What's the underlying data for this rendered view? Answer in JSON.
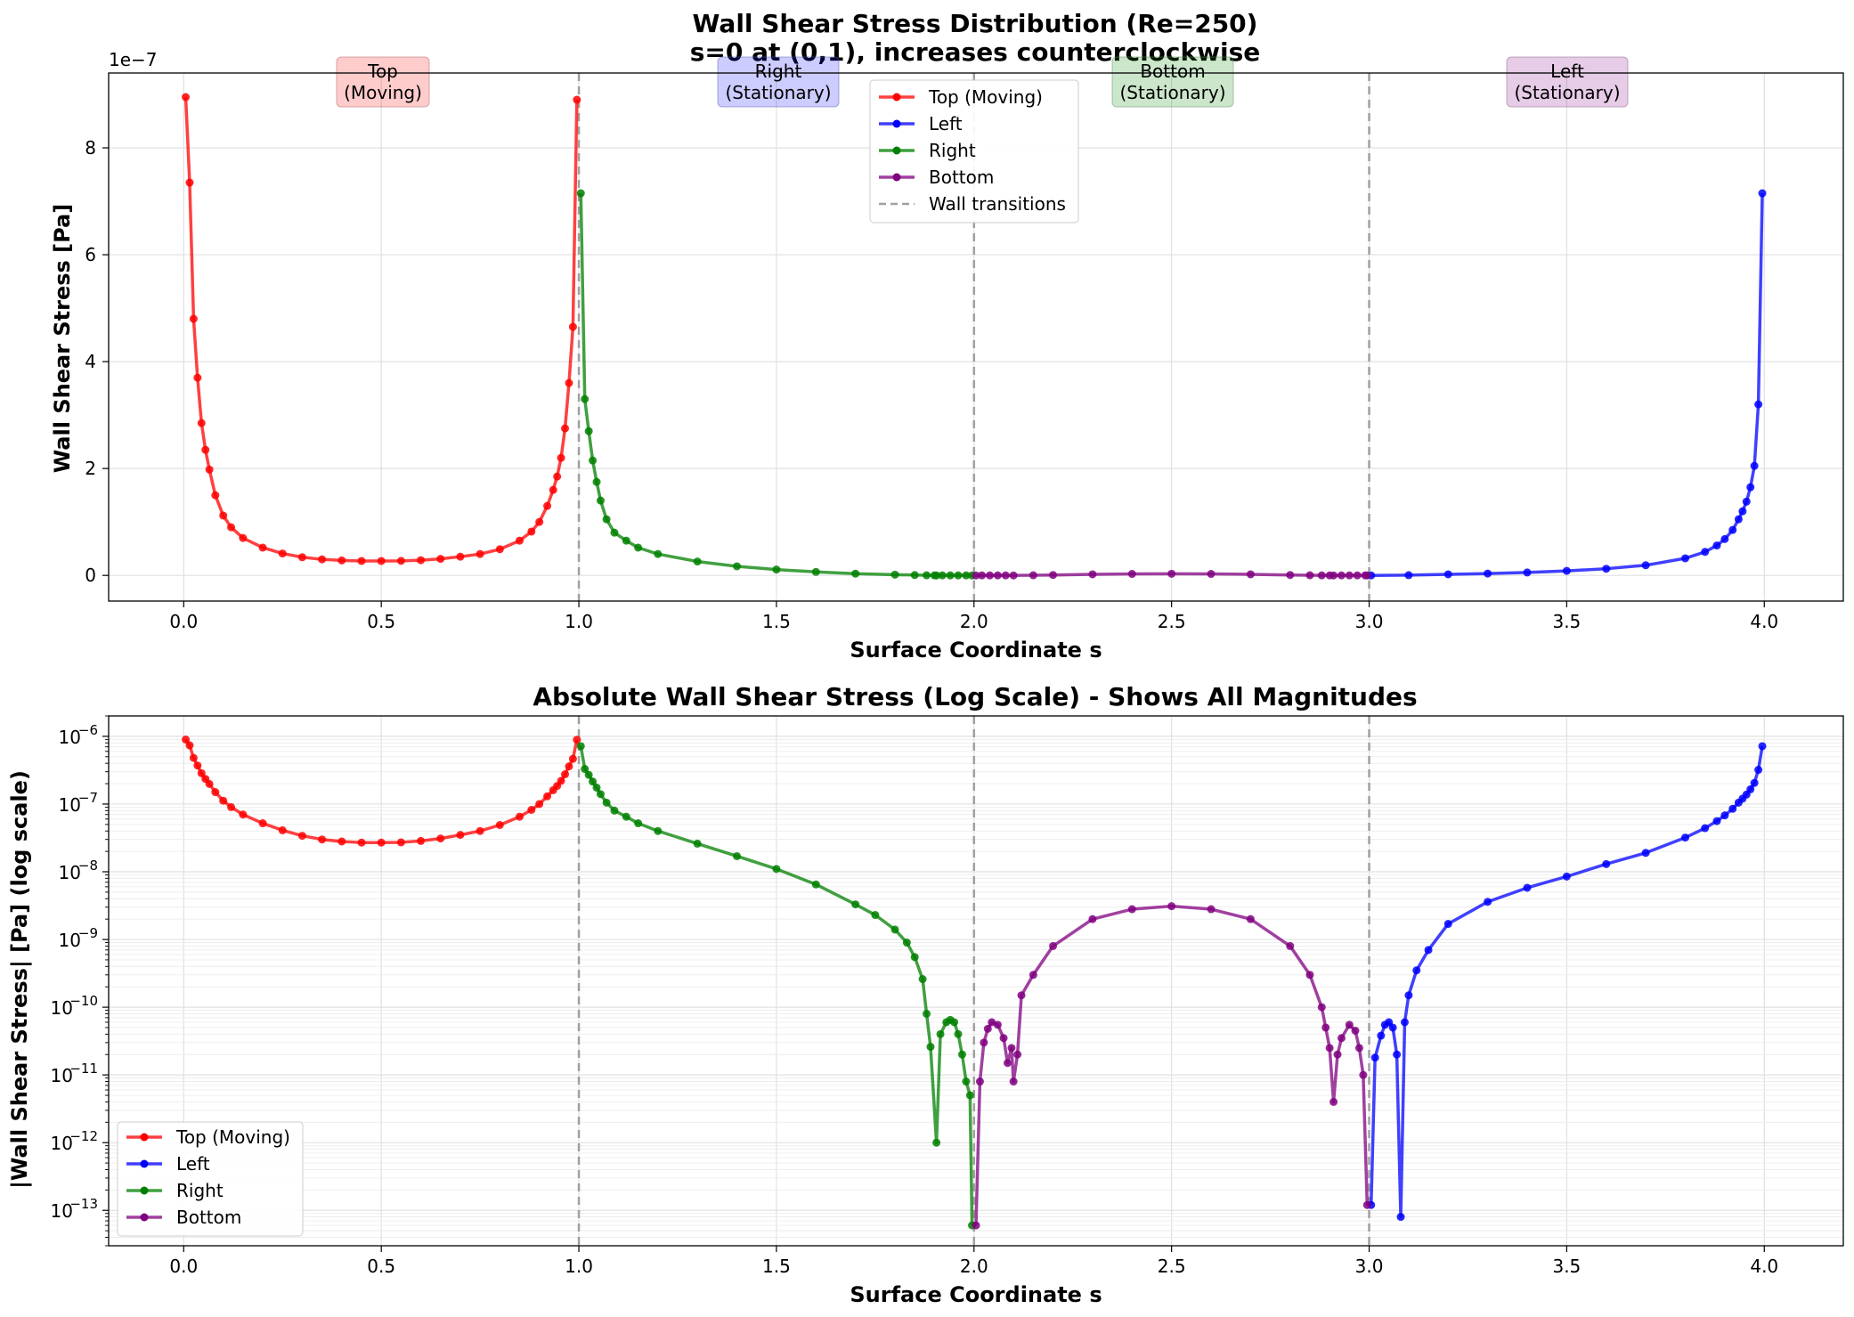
{
  "colors": {
    "top": "#ff0000",
    "left": "#0000ff",
    "right": "#008000",
    "bottom": "#800080",
    "transition": "#a0a0a0",
    "grid": "#e0e0e0"
  },
  "top_chart": {
    "title_line1": "Wall Shear Stress Distribution (Re=250)",
    "title_line2": "s=0 at (0,1), increases counterclockwise",
    "xlabel": "Surface Coordinate s",
    "ylabel": "Wall Shear Stress [Pa]",
    "offset_text": "1e−7",
    "x_ticks": [
      "0.0",
      "0.5",
      "1.0",
      "1.5",
      "2.0",
      "2.5",
      "3.0",
      "3.5",
      "4.0"
    ],
    "y_ticks": [
      "0",
      "2",
      "4",
      "6",
      "8"
    ],
    "wall_labels": [
      {
        "line1": "Top",
        "line2": "(Moving)"
      },
      {
        "line1": "Right",
        "line2": "(Stationary)"
      },
      {
        "line1": "Bottom",
        "line2": "(Stationary)"
      },
      {
        "line1": "Left",
        "line2": "(Stationary)"
      }
    ],
    "legend": [
      "Top (Moving)",
      "Left",
      "Right",
      "Bottom",
      "Wall transitions"
    ]
  },
  "bottom_chart": {
    "title": "Absolute Wall Shear Stress (Log Scale) - Shows All Magnitudes",
    "xlabel": "Surface Coordinate s",
    "ylabel": "|Wall Shear Stress| [Pa] (log scale)",
    "x_ticks": [
      "0.0",
      "0.5",
      "1.0",
      "1.5",
      "2.0",
      "2.5",
      "3.0",
      "3.5",
      "4.0"
    ],
    "y_ticks": [
      {
        "base": "10",
        "exp": "−6"
      },
      {
        "base": "10",
        "exp": "−7"
      },
      {
        "base": "10",
        "exp": "−8"
      },
      {
        "base": "10",
        "exp": "−9"
      },
      {
        "base": "10",
        "exp": "−10"
      },
      {
        "base": "10",
        "exp": "−11"
      },
      {
        "base": "10",
        "exp": "−12"
      },
      {
        "base": "10",
        "exp": "−13"
      }
    ],
    "legend": [
      "Top (Moving)",
      "Left",
      "Right",
      "Bottom"
    ]
  },
  "chart_data": [
    {
      "type": "line",
      "title": "Wall Shear Stress Distribution (Re=250)\ns=0 at (0,1), increases counterclockwise",
      "xlabel": "Surface Coordinate s",
      "ylabel": "Wall Shear Stress [Pa]",
      "xlim": [
        -0.19,
        4.2
      ],
      "ylim": [
        -4.8e-08,
        9.4e-07
      ],
      "y_scale": "linear",
      "grid": true,
      "legend_placement": "upper-center",
      "wall_transitions": [
        1.0,
        2.0,
        3.0
      ],
      "series": [
        {
          "name": "Top (Moving)",
          "color": "#ff0000",
          "x": [
            0.005,
            0.015,
            0.025,
            0.035,
            0.045,
            0.055,
            0.065,
            0.08,
            0.1,
            0.12,
            0.15,
            0.2,
            0.25,
            0.3,
            0.35,
            0.4,
            0.45,
            0.5,
            0.55,
            0.6,
            0.65,
            0.7,
            0.75,
            0.8,
            0.85,
            0.88,
            0.9,
            0.92,
            0.935,
            0.945,
            0.955,
            0.965,
            0.975,
            0.985,
            0.995
          ],
          "y": [
            8.95e-07,
            7.35e-07,
            4.8e-07,
            3.7e-07,
            2.85e-07,
            2.35e-07,
            1.98e-07,
            1.5e-07,
            1.12e-07,
            9e-08,
            7e-08,
            5.2e-08,
            4.1e-08,
            3.4e-08,
            3e-08,
            2.8e-08,
            2.7e-08,
            2.7e-08,
            2.72e-08,
            2.85e-08,
            3.1e-08,
            3.5e-08,
            4e-08,
            4.9e-08,
            6.5e-08,
            8.2e-08,
            1e-07,
            1.3e-07,
            1.6e-07,
            1.85e-07,
            2.2e-07,
            2.75e-07,
            3.6e-07,
            4.65e-07,
            8.9e-07
          ]
        },
        {
          "name": "Left",
          "color": "#0000ff",
          "x": [
            3.005,
            3.1,
            3.2,
            3.3,
            3.4,
            3.5,
            3.6,
            3.7,
            3.8,
            3.85,
            3.88,
            3.9,
            3.92,
            3.935,
            3.945,
            3.955,
            3.965,
            3.975,
            3.985,
            3.995
          ],
          "y": [
            1e-13,
            5e-10,
            2e-09,
            3.5e-09,
            5.5e-09,
            8.5e-09,
            1.25e-08,
            1.9e-08,
            3.2e-08,
            4.4e-08,
            5.6e-08,
            6.8e-08,
            8.5e-08,
            1.05e-07,
            1.2e-07,
            1.38e-07,
            1.65e-07,
            2.05e-07,
            3.2e-07,
            7.15e-07
          ]
        },
        {
          "name": "Right",
          "color": "#008000",
          "x": [
            1.005,
            1.015,
            1.025,
            1.035,
            1.045,
            1.055,
            1.07,
            1.09,
            1.12,
            1.15,
            1.2,
            1.3,
            1.4,
            1.5,
            1.6,
            1.7,
            1.8,
            1.85,
            1.88,
            1.9,
            1.905,
            1.92,
            1.94,
            1.96,
            1.98,
            1.995
          ],
          "y": [
            7.15e-07,
            3.3e-07,
            2.7e-07,
            2.15e-07,
            1.75e-07,
            1.4e-07,
            1.05e-07,
            8e-08,
            6.5e-08,
            5.2e-08,
            4e-08,
            2.6e-08,
            1.7e-08,
            1.1e-08,
            6.5e-09,
            3.3e-09,
            1.4e-09,
            7e-10,
            2.8e-10,
            2.6e-11,
            1e-12,
            4e-11,
            6e-11,
            5e-11,
            2e-11,
            1e-13
          ]
        },
        {
          "name": "Bottom",
          "color": "#800080",
          "x": [
            2.005,
            2.02,
            2.04,
            2.06,
            2.08,
            2.1,
            2.15,
            2.2,
            2.3,
            2.4,
            2.5,
            2.6,
            2.7,
            2.8,
            2.85,
            2.88,
            2.9,
            2.91,
            2.93,
            2.95,
            2.97,
            2.99,
            2.995
          ],
          "y": [
            6e-14,
            1.5e-11,
            4.8e-11,
            6e-11,
            4e-11,
            8e-12,
            3e-10,
            8e-10,
            2e-09,
            2.8e-09,
            3.1e-09,
            2.8e-09,
            2e-09,
            8e-10,
            3e-10,
            6e-11,
            2.5e-11,
            4e-12,
            3.5e-11,
            5.5e-11,
            4.5e-11,
            1.5e-11,
            1.2e-13
          ]
        }
      ],
      "annotations": [
        "Top\n(Moving)",
        "Right\n(Stationary)",
        "Bottom\n(Stationary)",
        "Left\n(Stationary)"
      ]
    },
    {
      "type": "line",
      "title": "Absolute Wall Shear Stress (Log Scale) - Shows All Magnitudes",
      "xlabel": "Surface Coordinate s",
      "ylabel": "|Wall Shear Stress| [Pa] (log scale)",
      "xlim": [
        -0.19,
        4.2
      ],
      "ylim": [
        3e-14,
        2e-06
      ],
      "y_scale": "log",
      "grid": true,
      "legend_placement": "lower-left",
      "wall_transitions": [
        1.0,
        2.0,
        3.0
      ],
      "series": [
        {
          "name": "Top (Moving)",
          "color": "#ff0000",
          "x": [
            0.005,
            0.015,
            0.025,
            0.035,
            0.045,
            0.055,
            0.065,
            0.08,
            0.1,
            0.12,
            0.15,
            0.2,
            0.25,
            0.3,
            0.35,
            0.4,
            0.45,
            0.5,
            0.55,
            0.6,
            0.65,
            0.7,
            0.75,
            0.8,
            0.85,
            0.88,
            0.9,
            0.92,
            0.935,
            0.945,
            0.955,
            0.965,
            0.975,
            0.985,
            0.995
          ],
          "y": [
            8.95e-07,
            7.35e-07,
            4.8e-07,
            3.7e-07,
            2.85e-07,
            2.35e-07,
            1.98e-07,
            1.5e-07,
            1.12e-07,
            9e-08,
            7e-08,
            5.2e-08,
            4.1e-08,
            3.4e-08,
            3e-08,
            2.8e-08,
            2.7e-08,
            2.7e-08,
            2.72e-08,
            2.85e-08,
            3.1e-08,
            3.5e-08,
            4e-08,
            4.9e-08,
            6.5e-08,
            8.2e-08,
            1e-07,
            1.3e-07,
            1.6e-07,
            1.85e-07,
            2.2e-07,
            2.75e-07,
            3.6e-07,
            4.65e-07,
            8.9e-07
          ]
        },
        {
          "name": "Left",
          "color": "#0000ff",
          "x": [
            3.005,
            3.015,
            3.03,
            3.04,
            3.05,
            3.06,
            3.07,
            3.08,
            3.09,
            3.1,
            3.12,
            3.15,
            3.2,
            3.3,
            3.4,
            3.5,
            3.6,
            3.7,
            3.8,
            3.85,
            3.88,
            3.9,
            3.92,
            3.935,
            3.945,
            3.955,
            3.965,
            3.975,
            3.985,
            3.995
          ],
          "y": [
            1.2e-13,
            1.8e-11,
            3.8e-11,
            5.5e-11,
            6e-11,
            5e-11,
            2e-11,
            8e-14,
            6e-11,
            1.5e-10,
            3.5e-10,
            7e-10,
            1.7e-09,
            3.6e-09,
            5.8e-09,
            8.5e-09,
            1.3e-08,
            1.9e-08,
            3.2e-08,
            4.4e-08,
            5.6e-08,
            6.8e-08,
            8.5e-08,
            1.05e-07,
            1.2e-07,
            1.38e-07,
            1.65e-07,
            2.05e-07,
            3.2e-07,
            7.15e-07
          ]
        },
        {
          "name": "Right",
          "color": "#008000",
          "x": [
            1.005,
            1.015,
            1.025,
            1.035,
            1.045,
            1.055,
            1.07,
            1.09,
            1.12,
            1.15,
            1.2,
            1.3,
            1.4,
            1.5,
            1.6,
            1.7,
            1.75,
            1.8,
            1.83,
            1.85,
            1.87,
            1.88,
            1.89,
            1.905,
            1.915,
            1.93,
            1.94,
            1.95,
            1.96,
            1.97,
            1.98,
            1.99,
            1.995
          ],
          "y": [
            7.15e-07,
            3.3e-07,
            2.7e-07,
            2.15e-07,
            1.75e-07,
            1.4e-07,
            1.05e-07,
            8e-08,
            6.5e-08,
            5.2e-08,
            4e-08,
            2.6e-08,
            1.7e-08,
            1.1e-08,
            6.5e-09,
            3.3e-09,
            2.3e-09,
            1.4e-09,
            9e-10,
            5.5e-10,
            2.6e-10,
            8e-11,
            2.6e-11,
            1e-12,
            4e-11,
            6e-11,
            6.5e-11,
            6e-11,
            4e-11,
            2e-11,
            8e-12,
            5e-12,
            6e-14
          ]
        },
        {
          "name": "Bottom",
          "color": "#800080",
          "x": [
            2.005,
            2.015,
            2.025,
            2.035,
            2.045,
            2.06,
            2.075,
            2.085,
            2.095,
            2.1,
            2.11,
            2.12,
            2.15,
            2.2,
            2.3,
            2.4,
            2.5,
            2.6,
            2.7,
            2.8,
            2.85,
            2.88,
            2.89,
            2.9,
            2.91,
            2.92,
            2.93,
            2.95,
            2.965,
            2.975,
            2.985,
            2.995
          ],
          "y": [
            6e-14,
            8e-12,
            3e-11,
            4.8e-11,
            6e-11,
            5.5e-11,
            3.5e-11,
            1.5e-11,
            2.5e-11,
            8e-12,
            2e-11,
            1.5e-10,
            3e-10,
            8e-10,
            2e-09,
            2.8e-09,
            3.1e-09,
            2.8e-09,
            2e-09,
            8e-10,
            3e-10,
            1e-10,
            5e-11,
            2.5e-11,
            4e-12,
            2e-11,
            3.5e-11,
            5.5e-11,
            4.5e-11,
            2.5e-11,
            1e-11,
            1.2e-13
          ]
        }
      ]
    }
  ]
}
